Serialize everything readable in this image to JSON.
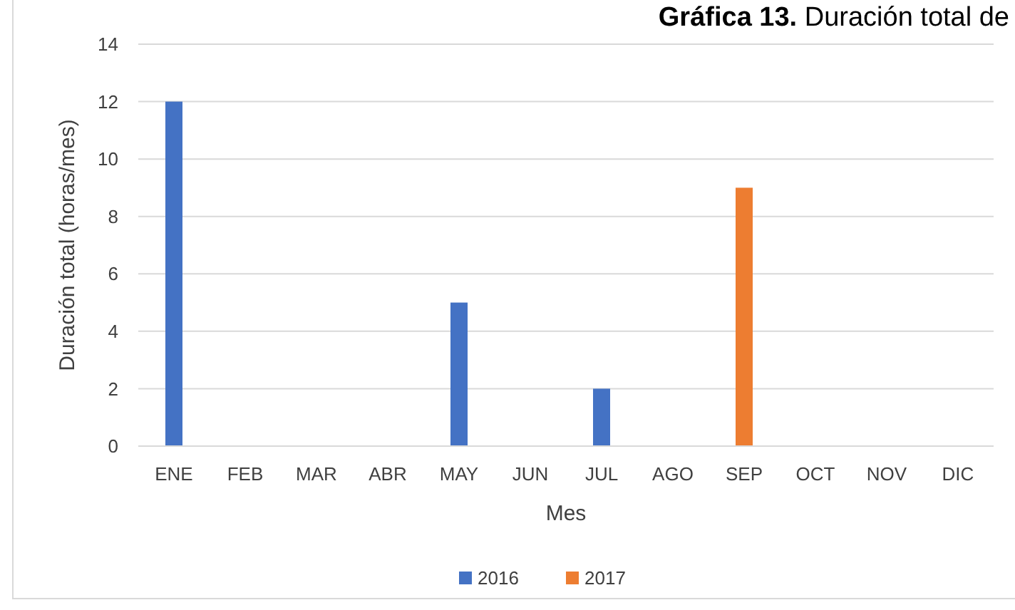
{
  "chart_data": {
    "type": "bar",
    "title": "Gráfica 13. Duración total de",
    "xlabel": "Mes",
    "ylabel": "Duración total (horas/mes)",
    "categories": [
      "ENE",
      "FEB",
      "MAR",
      "ABR",
      "MAY",
      "JUN",
      "JUL",
      "AGO",
      "SEP",
      "OCT",
      "NOV",
      "DIC"
    ],
    "series": [
      {
        "name": "2016",
        "color": "#4472c4",
        "values": [
          12,
          0,
          0,
          0,
          5,
          0,
          2,
          0,
          0,
          0,
          0,
          0
        ]
      },
      {
        "name": "2017",
        "color": "#ed7d31",
        "values": [
          0,
          0,
          0,
          0,
          0,
          0,
          0,
          0,
          9,
          0,
          0,
          0
        ]
      }
    ],
    "ylim": [
      0,
      14
    ],
    "yticks": [
      0,
      2,
      4,
      6,
      8,
      10,
      12,
      14
    ],
    "grid": "y",
    "legend": "bottom"
  }
}
